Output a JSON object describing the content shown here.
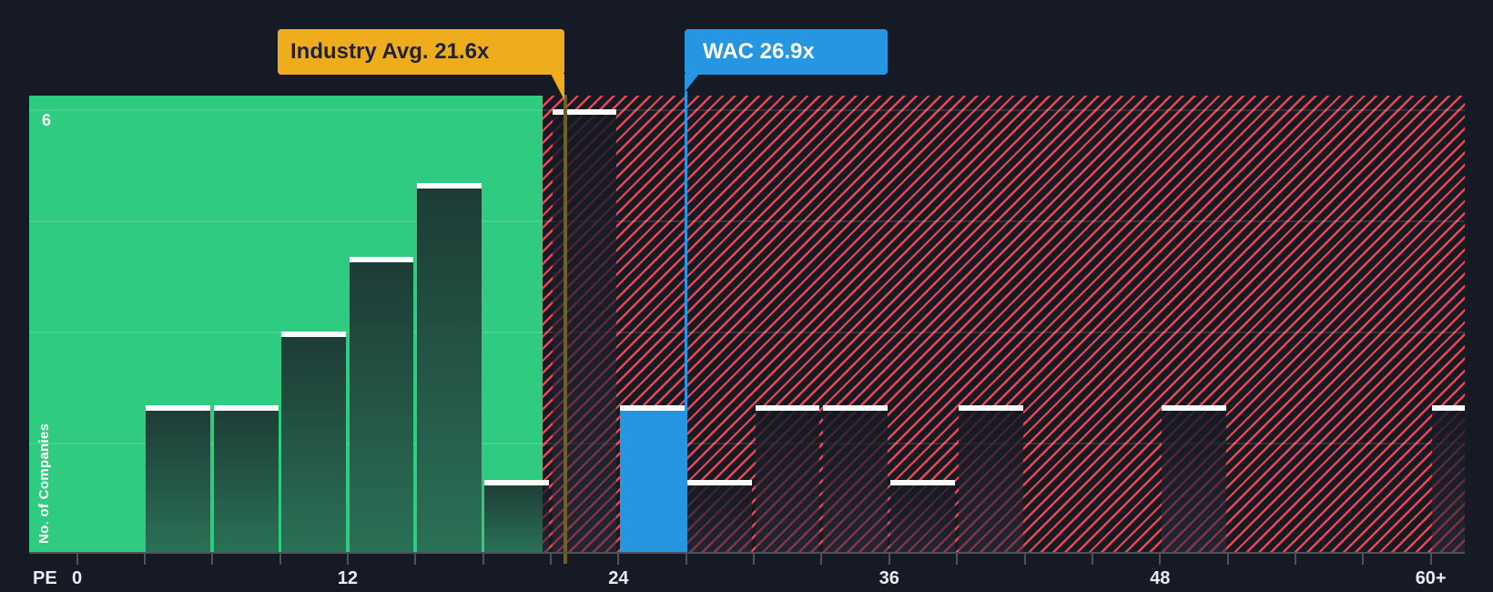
{
  "chart_data": {
    "type": "bar",
    "title": "",
    "xlabel": "PE",
    "ylabel": "No. of Companies",
    "y_max_label": "6",
    "ylim": [
      0,
      6.2
    ],
    "gridline_values": [
      1.5,
      3,
      4.5,
      6
    ],
    "bin_width_pe": 3,
    "bins": [
      {
        "pe_start": 0,
        "count": 0
      },
      {
        "pe_start": 3,
        "count": 2
      },
      {
        "pe_start": 6,
        "count": 2
      },
      {
        "pe_start": 9,
        "count": 3
      },
      {
        "pe_start": 12,
        "count": 4
      },
      {
        "pe_start": 15,
        "count": 5
      },
      {
        "pe_start": 18,
        "count": 1
      },
      {
        "pe_start": 21,
        "count": 6
      },
      {
        "pe_start": 24,
        "count": 2
      },
      {
        "pe_start": 27,
        "count": 1
      },
      {
        "pe_start": 30,
        "count": 2
      },
      {
        "pe_start": 33,
        "count": 2
      },
      {
        "pe_start": 36,
        "count": 1
      },
      {
        "pe_start": 39,
        "count": 2
      },
      {
        "pe_start": 42,
        "count": 0
      },
      {
        "pe_start": 45,
        "count": 0
      },
      {
        "pe_start": 48,
        "count": 2
      },
      {
        "pe_start": 51,
        "count": 0
      },
      {
        "pe_start": 54,
        "count": 0
      },
      {
        "pe_start": 57,
        "count": 0
      },
      {
        "pe_start": 60,
        "count": 2
      }
    ],
    "highlight_pe_start": 24,
    "x_tick_labels": [
      {
        "pe": 0,
        "label": "0"
      },
      {
        "pe": 12,
        "label": "12"
      },
      {
        "pe": 24,
        "label": "24"
      },
      {
        "pe": 36,
        "label": "36"
      },
      {
        "pe": 48,
        "label": "48"
      },
      {
        "pe": 60,
        "label": "60+"
      }
    ],
    "markers": [
      {
        "name": "industry-average",
        "label": "Industry Avg. 21.6x",
        "value": 21.6,
        "color": "#efac1d"
      },
      {
        "name": "wac",
        "label": "WAC 26.9x",
        "value": 26.9,
        "color": "#2696e3"
      }
    ],
    "legend": "none",
    "grid": "horizontal"
  },
  "colors": {
    "background": "#151a24",
    "below_average_zone": "#2ecb80",
    "above_average_hatch": "#ee4651",
    "bar_teal_top": "#1d3b35",
    "bar_teal_bottom": "#2a7156",
    "highlight_blue": "#2696e3",
    "industry_avg_yellow": "#efac1d",
    "industry_avg_line": "#6e6124",
    "axis_gray": "#4d535b",
    "label_white": "#ebedf0",
    "bar_cap_white": "#ffffff"
  }
}
